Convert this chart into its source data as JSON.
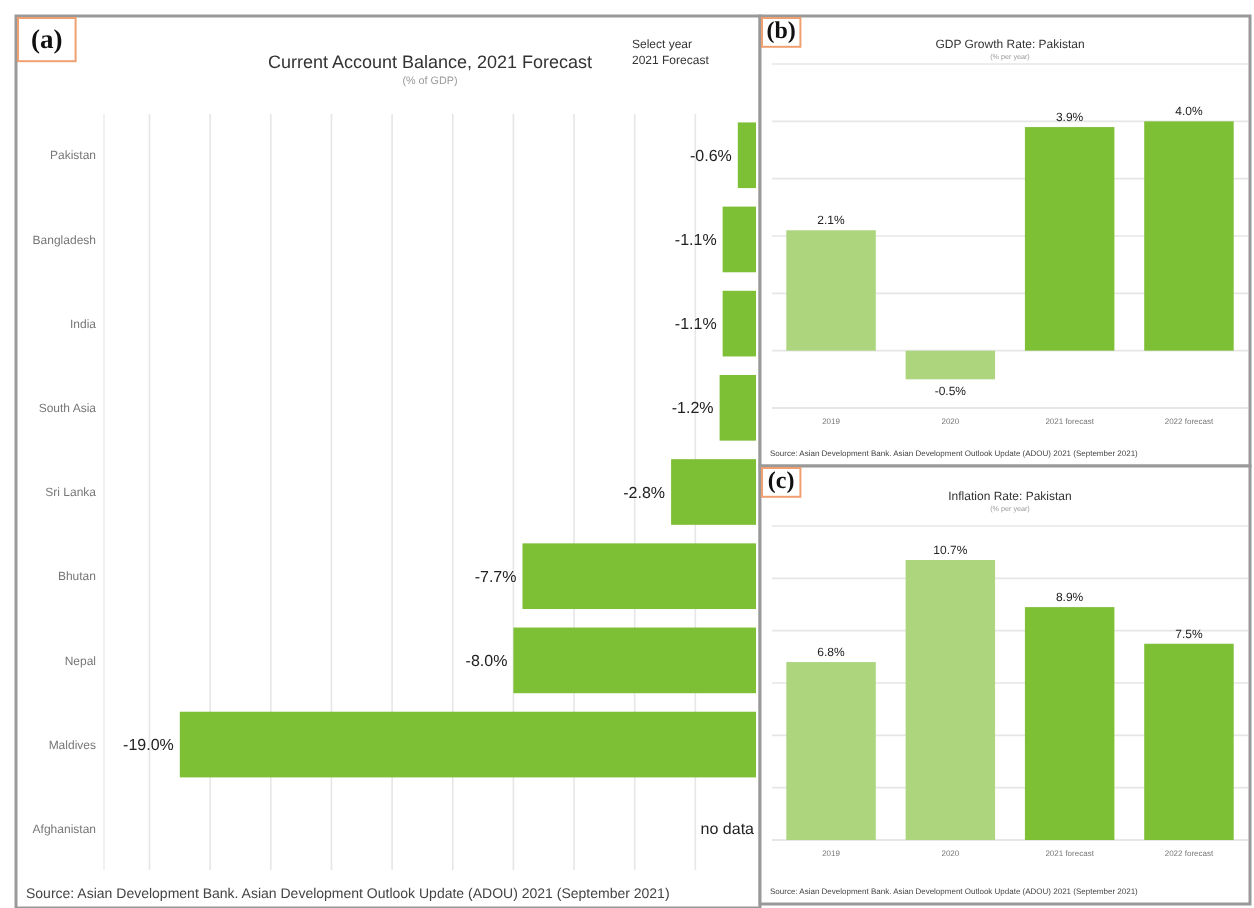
{
  "chart_data": [
    {
      "type": "bar",
      "orientation": "horizontal",
      "title": "Current Account Balance, 2021 Forecast",
      "subtitle": "(% of GDP)",
      "categories": [
        "Pakistan",
        "Bangladesh",
        "India",
        "South Asia",
        "Sri Lanka",
        "Bhutan",
        "Nepal",
        "Maldives",
        "Afghanistan"
      ],
      "values": [
        -0.6,
        -1.1,
        -1.1,
        -1.2,
        -2.8,
        -7.7,
        -8.0,
        -19.0,
        null
      ],
      "value_labels": [
        "-0.6%",
        "-1.1%",
        "-1.1%",
        "-1.2%",
        "-2.8%",
        "-7.7%",
        "-8.0%",
        "-19.0%",
        "no data"
      ],
      "colors": [
        "#7dbf35",
        "#7dbf35",
        "#7dbf35",
        "#7dbf35",
        "#7dbf35",
        "#7dbf35",
        "#7dbf35",
        "#7dbf35",
        "#7dbf35"
      ],
      "xlim": [
        -21.5,
        0
      ],
      "xticks": [
        {
          "value": -20,
          "label": null
        },
        {
          "value": -18,
          "label": null
        },
        {
          "value": -16,
          "label": null
        },
        {
          "value": -14,
          "label": null
        },
        {
          "value": -12,
          "label": null
        },
        {
          "value": -10,
          "label": null
        },
        {
          "value": -8,
          "label": null
        },
        {
          "value": -6,
          "label": null
        },
        {
          "value": -4,
          "label": null
        },
        {
          "value": -2,
          "label": null
        }
      ],
      "grid": "x",
      "tick_labels": "y",
      "annotations": [
        "(a)",
        "Select year",
        "2021 Forecast",
        "Source: Asian Development Bank. Asian Development Outlook Update (ADOU) 2021 (September 2021)"
      ]
    },
    {
      "type": "bar",
      "title": "GDP Growth Rate: Pakistan",
      "subtitle": "(% per year)",
      "categories": [
        "2019",
        "2020",
        "2021 forecast",
        "2022 forecast"
      ],
      "values": [
        2.1,
        -0.5,
        3.9,
        4.0
      ],
      "value_labels": [
        "2.1%",
        "-0.5%",
        "3.9%",
        "4.0%"
      ],
      "colors": [
        "#acd57e",
        "#acd57e",
        "#7dbf35",
        "#7dbf35"
      ],
      "ylim": [
        -1,
        5
      ],
      "yticks": [
        {
          "value": -1,
          "label": null
        },
        {
          "value": 0,
          "label": null
        },
        {
          "value": 1,
          "label": null
        },
        {
          "value": 2,
          "label": null
        },
        {
          "value": 3,
          "label": null
        },
        {
          "value": 4,
          "label": null
        },
        {
          "value": 5,
          "label": null
        }
      ],
      "grid": "y",
      "tick_labels": "x",
      "annotations": [
        "(b)",
        "Source: Asian Development Bank. Asian Development Outlook Update (ADOU) 2021 (September 2021)"
      ]
    },
    {
      "type": "bar",
      "title": "Inflation Rate: Pakistan",
      "subtitle": "(% per year)",
      "categories": [
        "2019",
        "2020",
        "2021 forecast",
        "2022 forecast"
      ],
      "values": [
        6.8,
        10.7,
        8.9,
        7.5
      ],
      "value_labels": [
        "6.8%",
        "10.7%",
        "8.9%",
        "7.5%"
      ],
      "colors": [
        "#acd57e",
        "#acd57e",
        "#7dbf35",
        "#7dbf35"
      ],
      "ylim": [
        0,
        12
      ],
      "yticks": [
        {
          "value": 0,
          "label": null
        },
        {
          "value": 2,
          "label": null
        },
        {
          "value": 4,
          "label": null
        },
        {
          "value": 6,
          "label": null
        },
        {
          "value": 8,
          "label": null
        },
        {
          "value": 10,
          "label": null
        },
        {
          "value": 12,
          "label": null
        }
      ],
      "grid": "y",
      "tick_labels": "x",
      "annotations": [
        "(c)",
        "Source: Asian Development Bank. Asian Development Outlook Update (ADOU) 2021 (September 2021)"
      ]
    }
  ]
}
